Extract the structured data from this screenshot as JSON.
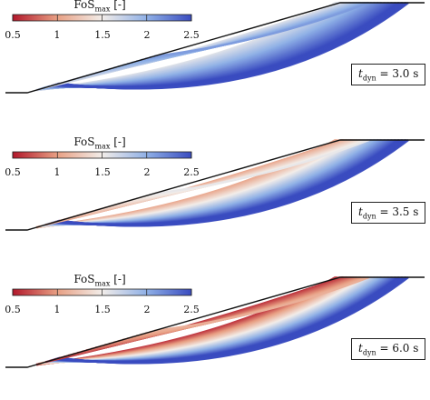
{
  "chart_data": [
    {
      "type": "contour",
      "colorbar_label": "FoS",
      "colorbar_sub": "max",
      "colorbar_unit": "[-]",
      "colorbar_ticks": [
        "0.5",
        "1",
        "1.5",
        "2",
        "2.5"
      ],
      "colorbar_range": [
        0.5,
        2.5
      ],
      "colormap": [
        "#b2182b",
        "#e8a084",
        "#f2ede9",
        "#8fb0e6",
        "#3a4cc0"
      ],
      "t_symbol": "t",
      "t_sub": "dyn",
      "t_value": "= 3.0 s",
      "min_fos_band_surface": 1.6
    },
    {
      "type": "contour",
      "colorbar_label": "FoS",
      "colorbar_sub": "max",
      "colorbar_unit": "[-]",
      "colorbar_ticks": [
        "0.5",
        "1",
        "1.5",
        "2",
        "2.5"
      ],
      "colorbar_range": [
        0.5,
        2.5
      ],
      "colormap": [
        "#b2182b",
        "#e8a084",
        "#f2ede9",
        "#8fb0e6",
        "#3a4cc0"
      ],
      "t_symbol": "t",
      "t_sub": "dyn",
      "t_value": "= 3.5 s",
      "min_fos_band_surface": 1.05
    },
    {
      "type": "contour",
      "colorbar_label": "FoS",
      "colorbar_sub": "max",
      "colorbar_unit": "[-]",
      "colorbar_ticks": [
        "0.5",
        "1",
        "1.5",
        "2",
        "2.5"
      ],
      "colorbar_range": [
        0.5,
        2.5
      ],
      "colormap": [
        "#b2182b",
        "#e8a084",
        "#f2ede9",
        "#8fb0e6",
        "#3a4cc0"
      ],
      "t_symbol": "t",
      "t_sub": "dyn",
      "t_value": "= 6.0 s",
      "min_fos_band_surface": 0.6
    }
  ]
}
